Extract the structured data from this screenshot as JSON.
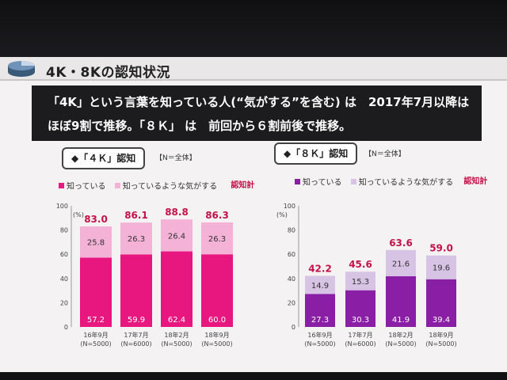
{
  "slide": {
    "title": "4K・8Kの認知状況",
    "banner_line1": "「4K」という言葉を知っている人(“気がする”を含む) は　2017年7月以降は",
    "banner_line2": "ほぼ9割で推移。「８Ｋ」 は　前回から６割前後で推移。"
  },
  "left_panel": {
    "tag": "◆「４Ｋ」認知",
    "scope": "【N＝全体】",
    "legend_known": "知っている",
    "legend_feel": "知っているような気がする",
    "legend_total": "認知計"
  },
  "right_panel": {
    "tag": "◆「８Ｋ」認知",
    "scope": "【N＝全体】",
    "legend_known": "知っている",
    "legend_feel": "知っているような気がする",
    "legend_total": "認知計"
  },
  "colors": {
    "k4_known": "#e8177f",
    "k4_feel": "#f4b3d6",
    "k8_known": "#8a1fa6",
    "k8_feel": "#d7c3e4",
    "total_label": "#c4124a"
  },
  "chart_data": [
    {
      "type": "bar",
      "stacked": true,
      "title": "◆「４Ｋ」認知",
      "categories": [
        "16年9月",
        "17年7月",
        "18年2月",
        "18年9月"
      ],
      "sample_sizes": [
        "(N=5000)",
        "(N=6000)",
        "(N=5000)",
        "(N=5000)"
      ],
      "series": [
        {
          "name": "知っている",
          "values": [
            57.2,
            59.9,
            62.4,
            60.0
          ]
        },
        {
          "name": "知っているような気がする",
          "values": [
            25.8,
            26.3,
            26.4,
            26.3
          ]
        }
      ],
      "totals_name": "認知計",
      "totals": [
        83.0,
        86.1,
        88.8,
        86.3
      ],
      "ylabel": "(%)",
      "ylim": [
        0,
        100
      ],
      "yticks": [
        0,
        20,
        40,
        60,
        80,
        100
      ]
    },
    {
      "type": "bar",
      "stacked": true,
      "title": "◆「８Ｋ」認知",
      "categories": [
        "16年9月",
        "17年7月",
        "18年2月",
        "18年9月"
      ],
      "sample_sizes": [
        "(N=5000)",
        "(N=6000)",
        "(N=5000)",
        "(N=5000)"
      ],
      "series": [
        {
          "name": "知っている",
          "values": [
            27.3,
            30.3,
            41.9,
            39.4
          ]
        },
        {
          "name": "知っているような気がする",
          "values": [
            14.9,
            15.3,
            21.6,
            19.6
          ]
        }
      ],
      "totals_name": "認知計",
      "totals": [
        42.2,
        45.6,
        63.6,
        59.0
      ],
      "ylabel": "(%)",
      "ylim": [
        0,
        100
      ],
      "yticks": [
        0,
        20,
        40,
        60,
        80,
        100
      ]
    }
  ]
}
